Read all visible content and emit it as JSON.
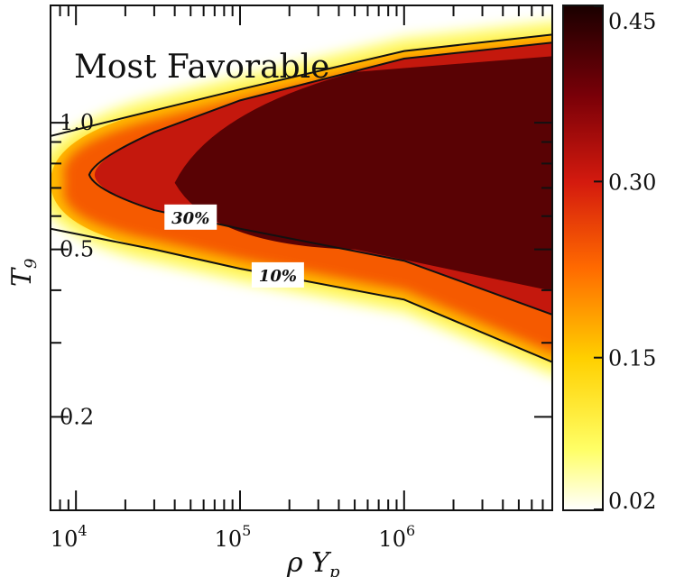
{
  "chart_data": {
    "type": "heatmap",
    "title": "Most Favorable",
    "xlabel": "ρ Y",
    "xlabel_sub": "p",
    "ylabel": "T",
    "ylabel_sub": "9",
    "x_scale": "log",
    "y_scale": "log",
    "xlim": [
      7000,
      8000000
    ],
    "ylim": [
      0.12,
      1.9
    ],
    "x_ticks": [
      {
        "value": 10000,
        "base": "10",
        "exp": "4"
      },
      {
        "value": 100000,
        "base": "10",
        "exp": "5"
      },
      {
        "value": 1000000,
        "base": "10",
        "exp": "6"
      }
    ],
    "y_ticks": [
      {
        "value": 1.0,
        "label": "1.0"
      },
      {
        "value": 0.5,
        "label": "0.5"
      },
      {
        "value": 0.2,
        "label": "0.2"
      }
    ],
    "colorbar": {
      "min": 0.02,
      "max": 0.45,
      "ticks": [
        {
          "value": 0.45,
          "label": "0.45"
        },
        {
          "value": 0.3,
          "label": "0.30"
        },
        {
          "value": 0.15,
          "label": "0.15"
        },
        {
          "value": 0.02,
          "label": "0.02"
        }
      ],
      "colormap": [
        "#ffffff",
        "#ffff00",
        "#ff7a00",
        "#d42010",
        "#6e0008",
        "#1a0000"
      ]
    },
    "contours": [
      {
        "label": "10%",
        "level": 0.1,
        "upper": [
          [
            7000,
            0.93
          ],
          [
            30000,
            1.07
          ],
          [
            100000,
            1.2
          ],
          [
            1000000,
            1.48
          ],
          [
            8000000,
            1.62
          ]
        ],
        "lower": [
          [
            7000,
            0.56
          ],
          [
            30000,
            0.5
          ],
          [
            100000,
            0.45
          ],
          [
            1000000,
            0.38
          ],
          [
            8000000,
            0.27
          ]
        ]
      },
      {
        "label": "30%",
        "level": 0.3,
        "upper": [
          [
            13000,
            0.82
          ],
          [
            30000,
            0.95
          ],
          [
            100000,
            1.13
          ],
          [
            1000000,
            1.42
          ],
          [
            8000000,
            1.55
          ]
        ],
        "lower": [
          [
            13000,
            0.69
          ],
          [
            30000,
            0.62
          ],
          [
            100000,
            0.56
          ],
          [
            1000000,
            0.47
          ],
          [
            8000000,
            0.35
          ]
        ]
      }
    ],
    "core_region": {
      "value": 0.4,
      "apex_x": 40000,
      "center_y": 0.72
    },
    "grid": false
  }
}
